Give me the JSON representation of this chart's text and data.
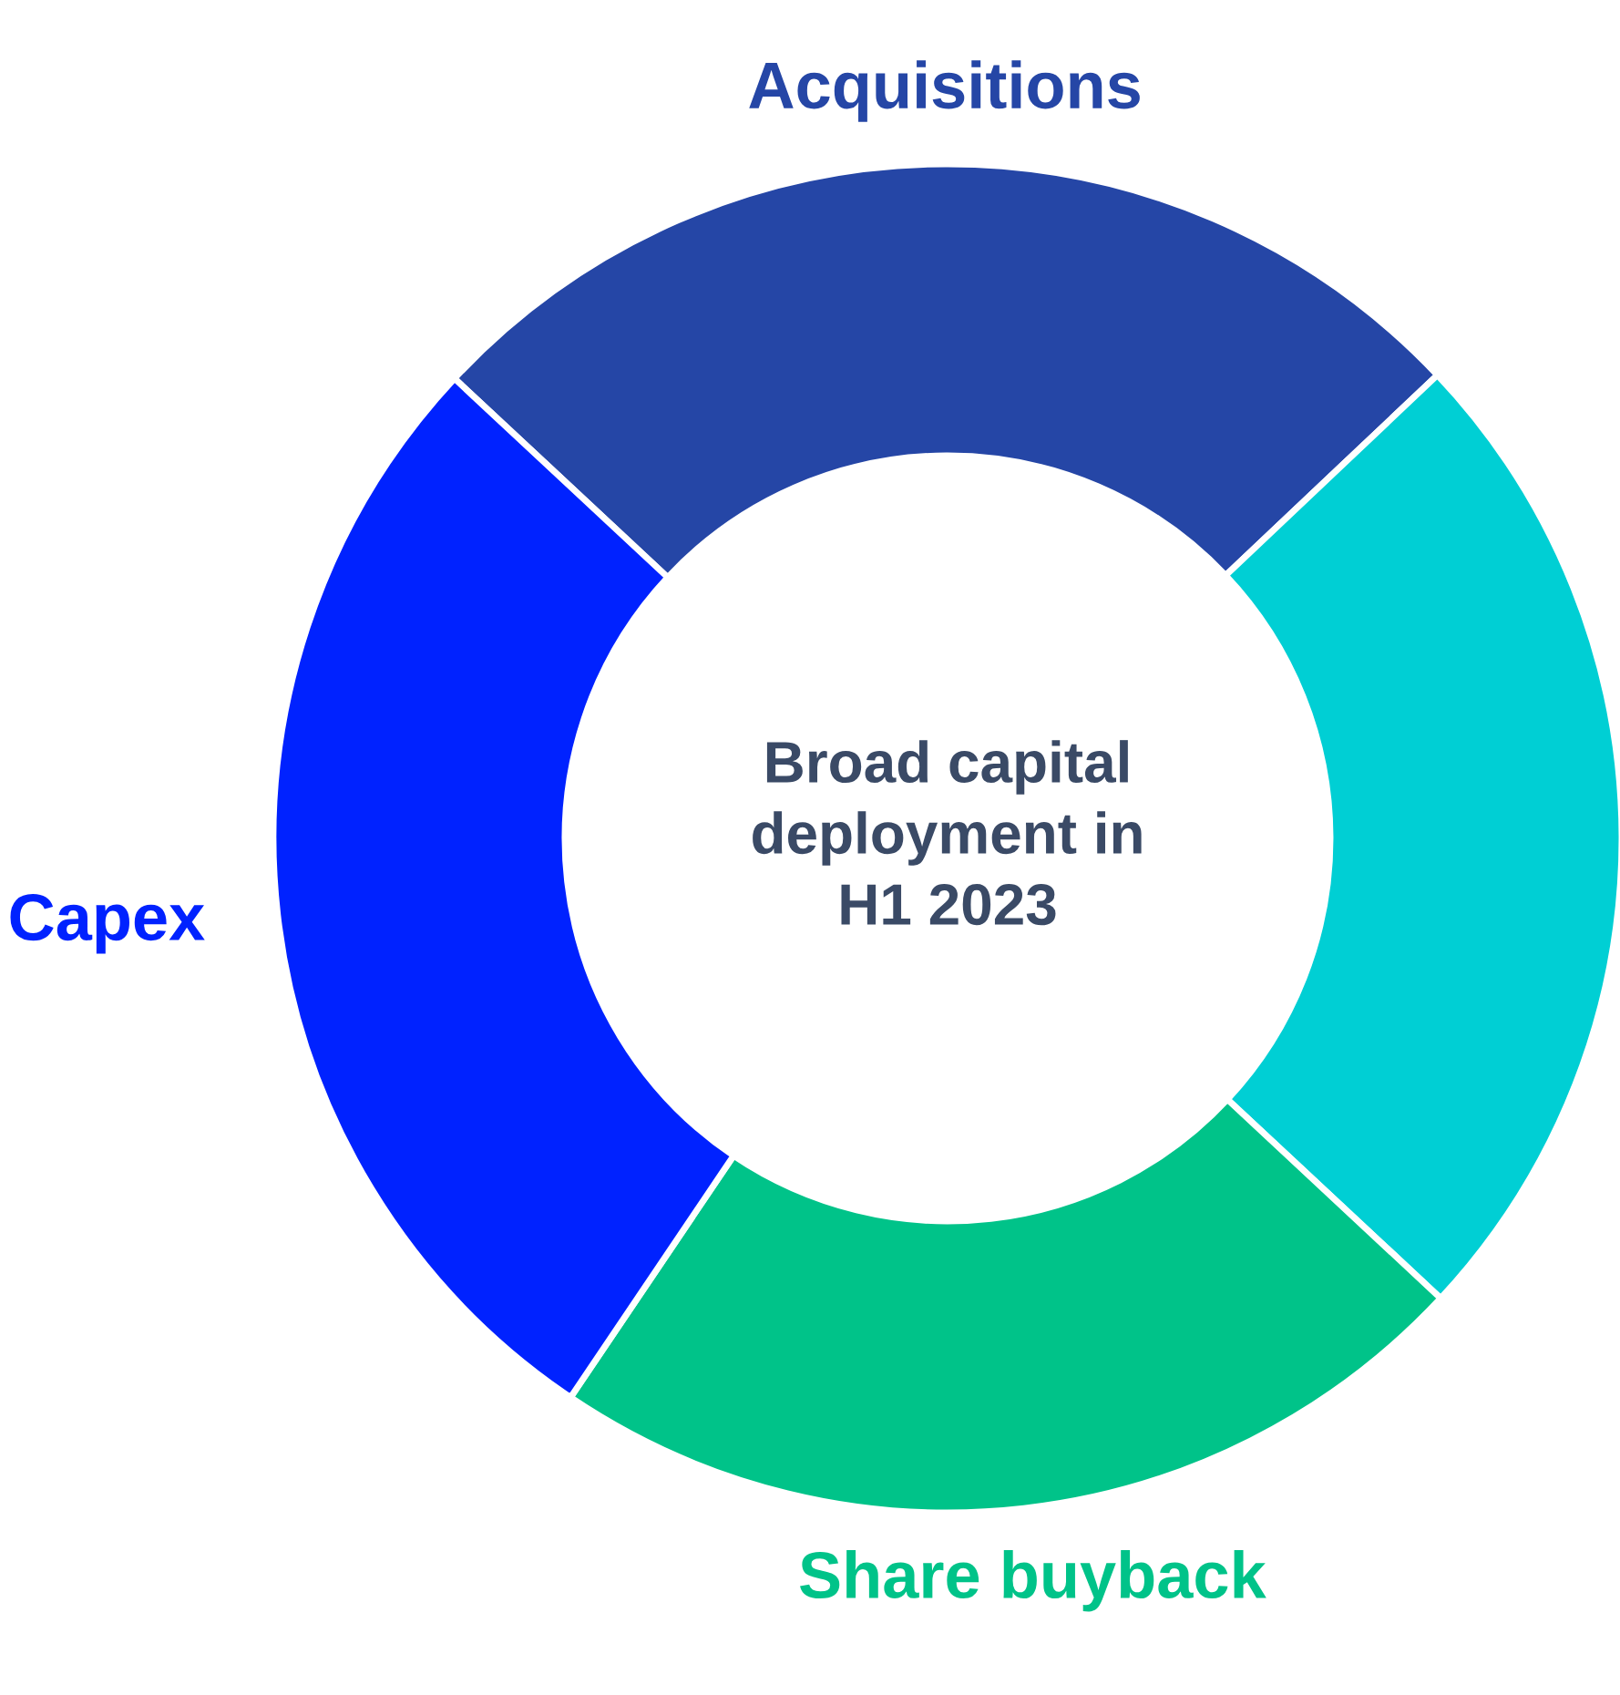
{
  "chart_data": {
    "type": "donut",
    "title": "Broad capital\ndeployment in\nH1 2023",
    "categories": [
      "Acquisitions",
      null,
      "Share buyback",
      "Capex"
    ],
    "values": [
      26,
      24,
      22.5,
      27.5
    ],
    "colors": [
      "#2546a6",
      "#00cfd4",
      "#00c389",
      "#0022ff"
    ]
  }
}
